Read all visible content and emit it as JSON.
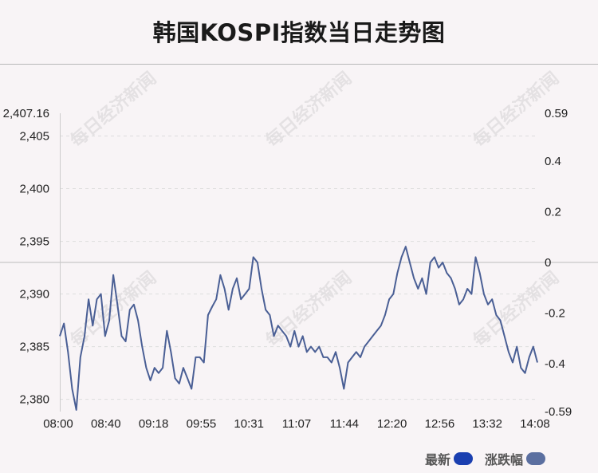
{
  "title": "韩国KOSPI指数当日走势图",
  "watermark": "每日经济新闻",
  "legend": [
    {
      "label": "最新",
      "color": "#1a3fb0"
    },
    {
      "label": "涨跌幅",
      "color": "#5b6fa0"
    }
  ],
  "colors": {
    "line": "#4a5f95",
    "zero_line": "#c8c8c8",
    "grid": "#dddddd"
  },
  "chart_data": {
    "type": "line",
    "title": "韩国KOSPI指数当日走势图",
    "x_ticks": [
      "08:00",
      "08:40",
      "09:18",
      "09:55",
      "10:31",
      "11:07",
      "11:44",
      "12:20",
      "12:56",
      "13:32",
      "14:08"
    ],
    "y_left_top_label": "2,407.16",
    "y_left_ticks": [
      "2,405",
      "2,400",
      "2,395",
      "2,390",
      "2,385",
      "2,380"
    ],
    "y_left_tick_values": [
      2405,
      2400,
      2395,
      2390,
      2385,
      2380
    ],
    "y_right_ticks": [
      "0.59",
      "0.4",
      "0.2",
      "0",
      "-0.2",
      "-0.4",
      "-0.59"
    ],
    "y_right_tick_values": [
      0.59,
      0.4,
      0.2,
      0,
      -0.2,
      -0.4,
      -0.59
    ],
    "ylim_left": [
      2378.84,
      2407.16
    ],
    "ylim_right": [
      -0.59,
      0.59
    ],
    "zero_reference": 2393.0,
    "series": [
      {
        "values": [
          2386.0,
          2387.2,
          2384.5,
          2381.0,
          2379.0,
          2384.0,
          2386.0,
          2389.5,
          2387.0,
          2389.5,
          2390.0,
          2386.0,
          2387.5,
          2391.8,
          2389.0,
          2386.0,
          2385.5,
          2388.5,
          2389.0,
          2387.5,
          2385.0,
          2383.0,
          2381.8,
          2383.0,
          2382.5,
          2383.0,
          2386.5,
          2384.5,
          2382.0,
          2381.5,
          2383.0,
          2382.0,
          2381.0,
          2384.0,
          2384.0,
          2383.5,
          2388.0,
          2388.8,
          2389.5,
          2391.8,
          2390.5,
          2388.5,
          2390.5,
          2391.5,
          2389.5,
          2390.0,
          2390.5,
          2393.5,
          2393.0,
          2390.5,
          2388.5,
          2388.0,
          2386.0,
          2387.0,
          2386.5,
          2386.0,
          2385.0,
          2386.5,
          2385.0,
          2386.0,
          2384.5,
          2385.0,
          2384.5,
          2385.0,
          2384.0,
          2384.0,
          2383.5,
          2384.5,
          2383.0,
          2381.0,
          2383.5,
          2384.0,
          2384.5,
          2384.0,
          2385.0,
          2385.5,
          2386.0,
          2386.5,
          2387.0,
          2388.0,
          2389.5,
          2390.0,
          2392.0,
          2393.5,
          2394.5,
          2393.0,
          2391.5,
          2390.5,
          2391.5,
          2390.0,
          2393.0,
          2393.5,
          2392.5,
          2393.0,
          2392.0,
          2391.5,
          2390.5,
          2389.0,
          2389.5,
          2390.5,
          2390.0,
          2393.5,
          2392.0,
          2390.0,
          2389.0,
          2389.5,
          2388.0,
          2387.5,
          2386.0,
          2384.5,
          2383.5,
          2385.0,
          2383.0,
          2382.5,
          2384.0,
          2385.0,
          2383.5
        ]
      }
    ],
    "grid": true,
    "legend_position": "bottom-right"
  }
}
